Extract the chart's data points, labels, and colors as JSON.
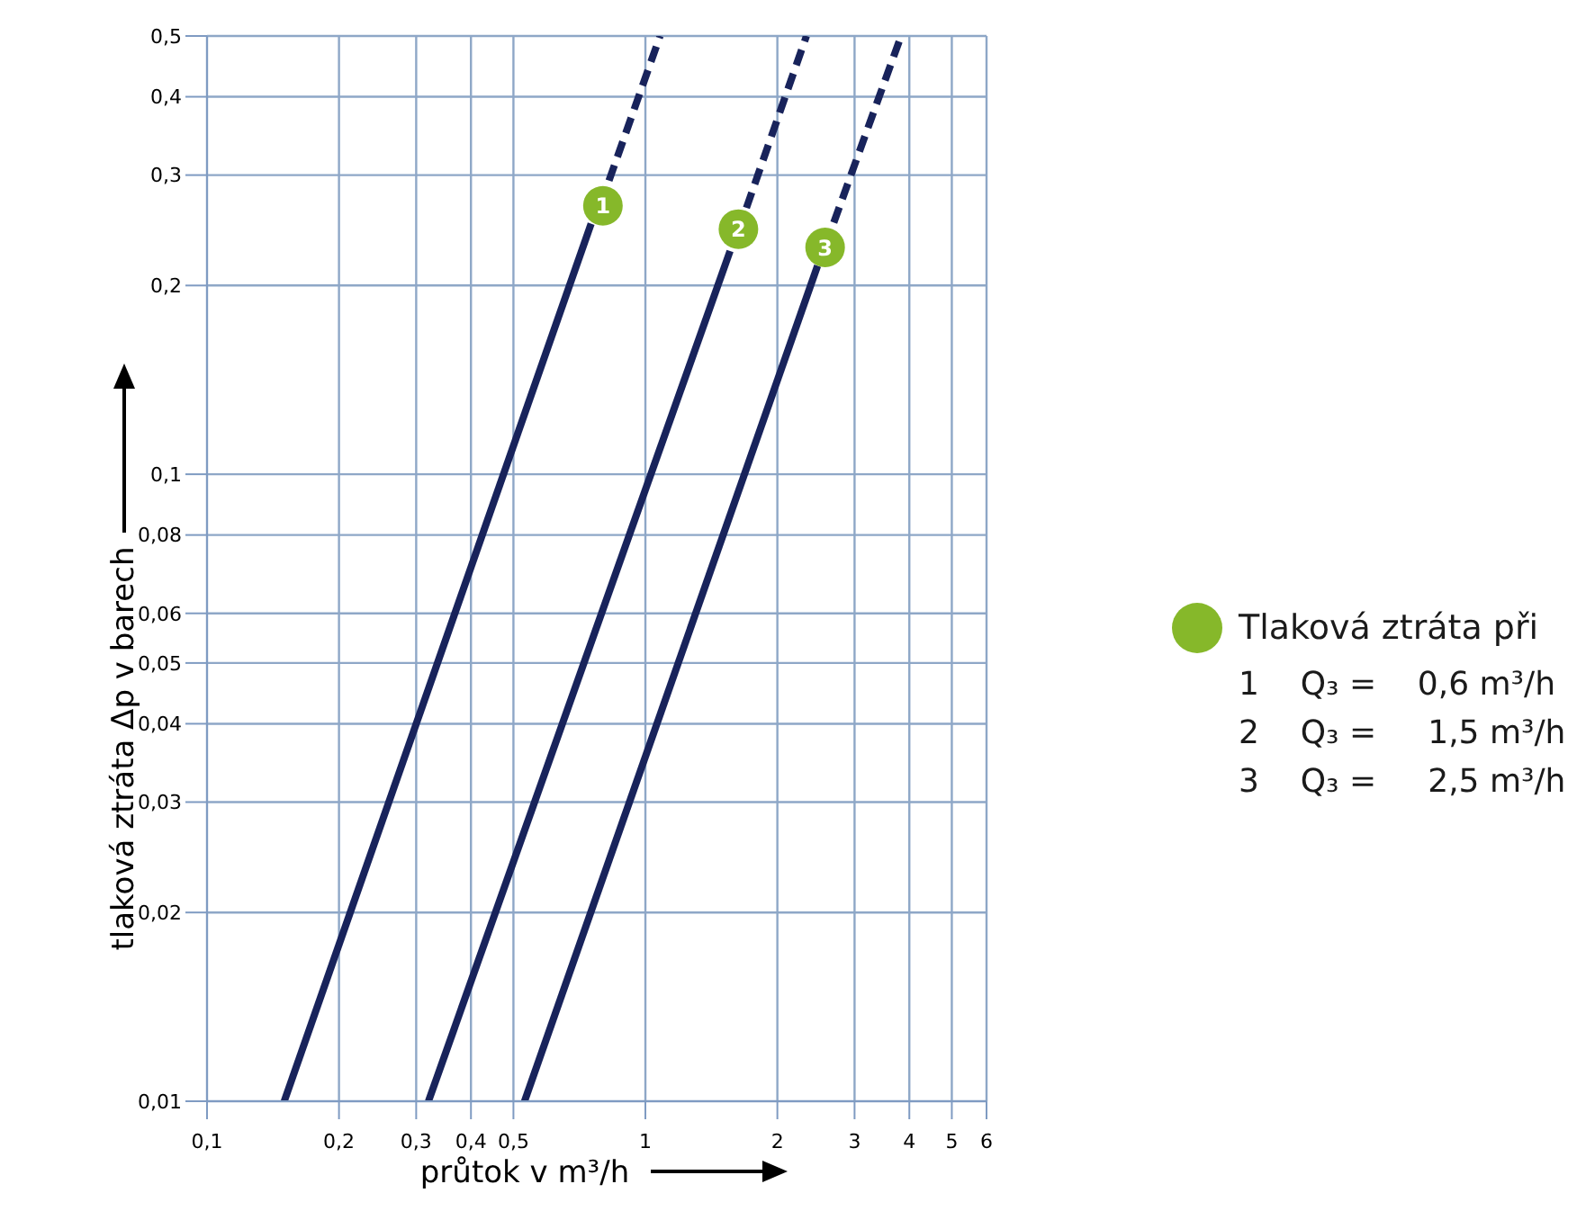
{
  "chart_data": {
    "type": "line",
    "xlabel": "průtok v  m³/h",
    "ylabel": "tlaková ztráta Δp v  barech",
    "log": "xy",
    "grid": true,
    "legend": "right",
    "xlim": [
      0.1,
      6
    ],
    "ylim": [
      0.01,
      0.5
    ],
    "xticks": [
      {
        "value": 0.1,
        "label": "0,1"
      },
      {
        "value": 0.2,
        "label": "0,2"
      },
      {
        "value": 0.3,
        "label": "0,3"
      },
      {
        "value": 0.4,
        "label": "0,4"
      },
      {
        "value": 0.5,
        "label": "0,5"
      },
      1,
      2,
      3,
      4,
      5,
      6
    ],
    "yticks": [
      {
        "value": 0.01,
        "label": "0,01"
      },
      {
        "value": 0.02,
        "label": "0,02"
      },
      {
        "value": 0.03,
        "label": "0,03"
      },
      {
        "value": 0.04,
        "label": "0,04"
      },
      {
        "value": 0.05,
        "label": "0,05"
      },
      {
        "value": 0.06,
        "label": "0,06"
      },
      {
        "value": 0.08,
        "label": "0,08"
      },
      {
        "value": 0.1,
        "label": "0,1"
      },
      {
        "value": 0.2,
        "label": "0,2"
      },
      {
        "value": 0.3,
        "label": "0,3"
      },
      {
        "value": 0.4,
        "label": "0,4"
      },
      {
        "value": 0.5,
        "label": "0,5"
      }
    ],
    "series": [
      {
        "type": "line",
        "color": "#18235b",
        "line_style": "solid",
        "x": [
          0.15,
          0.752
        ],
        "values": [
          0.01,
          0.251
        ]
      },
      {
        "type": "line",
        "color": "#18235b",
        "line_style": "dashed",
        "x": [
          0.826,
          1.08
        ],
        "values": [
          0.294,
          0.5
        ]
      },
      {
        "type": "line",
        "color": "#18235b",
        "line_style": "solid",
        "x": [
          0.32,
          1.56
        ],
        "values": [
          0.01,
          0.227
        ]
      },
      {
        "type": "line",
        "color": "#18235b",
        "line_style": "dashed",
        "x": [
          1.7,
          2.33
        ],
        "values": [
          0.266,
          0.5
        ]
      },
      {
        "type": "line",
        "color": "#18235b",
        "line_style": "solid",
        "x": [
          0.53,
          2.47
        ],
        "values": [
          0.01,
          0.215
        ]
      },
      {
        "type": "line",
        "color": "#18235b",
        "line_style": "dashed",
        "x": [
          2.69,
          3.83
        ],
        "values": [
          0.252,
          0.5
        ]
      },
      {
        "type": "scatter",
        "name": "Tlaková ztráta při",
        "color": "#86b82a",
        "marker": "circle",
        "x": [
          0.8,
          1.63,
          2.57
        ],
        "values": [
          0.268,
          0.246,
          0.23
        ]
      }
    ],
    "annotations": [
      {
        "text": "1",
        "x": 0.8,
        "y": 0.268
      },
      {
        "text": "2",
        "x": 1.63,
        "y": 0.246
      },
      {
        "text": "3",
        "x": 2.57,
        "y": 0.23
      },
      "1    Q₃ =    0,6 m³/h",
      "2    Q₃ =     1,5 m³/h",
      "3    Q₃ =     2,5 m³/h"
    ]
  }
}
